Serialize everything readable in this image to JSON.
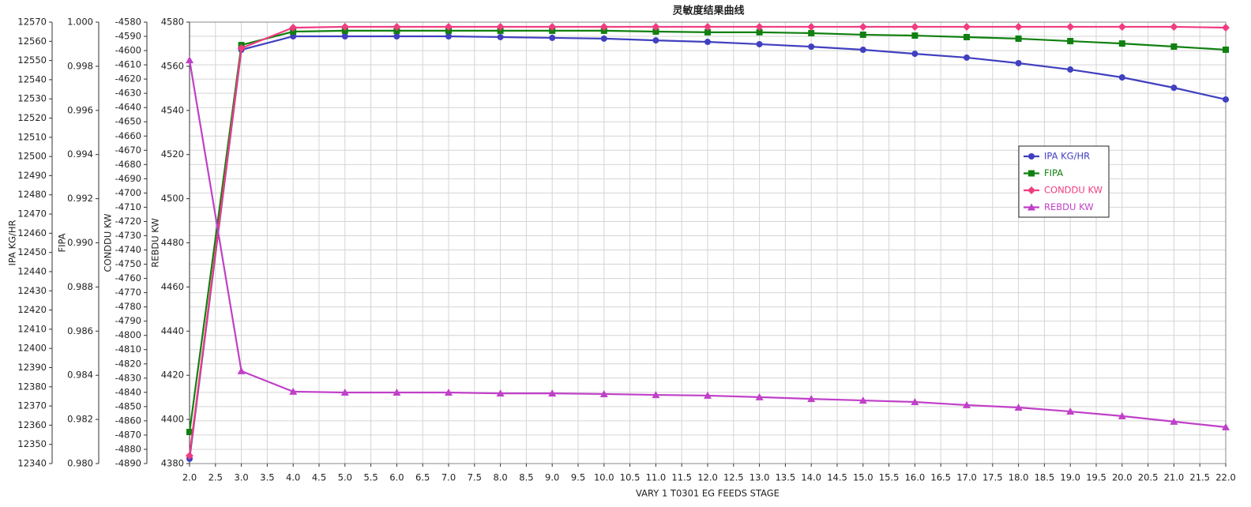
{
  "chart_data": {
    "type": "line",
    "title": "灵敏度结果曲线",
    "x_label": "VARY   1 T0301 EG FEEDS STAGE",
    "x": [
      2,
      3,
      4,
      5,
      6,
      7,
      8,
      9,
      10,
      11,
      12,
      13,
      14,
      15,
      16,
      17,
      18,
      19,
      20,
      21,
      22
    ],
    "xlim": [
      2,
      22
    ],
    "xticks": [
      {
        "value": 2,
        "label": "2.0"
      },
      2.5,
      {
        "value": 3,
        "label": "3.0"
      },
      3.5,
      {
        "value": 4,
        "label": "4.0"
      },
      4.5,
      {
        "value": 5,
        "label": "5.0"
      },
      5.5,
      {
        "value": 6,
        "label": "6.0"
      },
      6.5,
      {
        "value": 7,
        "label": "7.0"
      },
      7.5,
      {
        "value": 8,
        "label": "8.0"
      },
      8.5,
      {
        "value": 9,
        "label": "9.0"
      },
      9.5,
      {
        "value": 10,
        "label": "10.0"
      },
      10.5,
      {
        "value": 11,
        "label": "11.0"
      },
      11.5,
      {
        "value": 12,
        "label": "12.0"
      },
      12.5,
      {
        "value": 13,
        "label": "13.0"
      },
      13.5,
      {
        "value": 14,
        "label": "14.0"
      },
      14.5,
      {
        "value": 15,
        "label": "15.0"
      },
      15.5,
      {
        "value": 16,
        "label": "16.0"
      },
      16.5,
      {
        "value": 17,
        "label": "17.0"
      },
      17.5,
      {
        "value": 18,
        "label": "18.0"
      },
      18.5,
      {
        "value": 19,
        "label": "19.0"
      },
      19.5,
      {
        "value": 20,
        "label": "20.0"
      },
      20.5,
      {
        "value": 21,
        "label": "21.0"
      },
      21.5,
      {
        "value": 22,
        "label": "22.0"
      }
    ],
    "grid": true,
    "legend": "upper-right",
    "y_axes": [
      {
        "label": "IPA KG/HR",
        "ylim": [
          12340,
          12570
        ],
        "yticks": [
          12340,
          12350,
          12360,
          12370,
          12380,
          12390,
          12400,
          12410,
          12420,
          12430,
          12440,
          12450,
          12460,
          12470,
          12480,
          12490,
          12500,
          12510,
          12520,
          12530,
          12540,
          12550,
          12560,
          12570
        ]
      },
      {
        "label": "FIPA",
        "ylim": [
          0.98,
          1.0
        ],
        "yticks": [
          {
            "value": 0.98,
            "label": "0.980"
          },
          0.982,
          0.984,
          0.986,
          0.988,
          {
            "value": 0.99,
            "label": "0.990"
          },
          0.992,
          0.994,
          0.996,
          0.998,
          {
            "value": 1.0,
            "label": "1.000"
          }
        ]
      },
      {
        "label": "CONDDU KW",
        "ylim": [
          -4890,
          -4580
        ],
        "yticks": [
          -4890,
          -4880,
          -4870,
          -4860,
          -4850,
          -4840,
          -4830,
          -4820,
          -4810,
          -4800,
          -4790,
          -4780,
          -4770,
          -4760,
          -4750,
          -4740,
          -4730,
          -4720,
          -4710,
          -4700,
          -4690,
          -4680,
          -4670,
          -4660,
          -4650,
          -4640,
          -4630,
          -4620,
          -4610,
          -4600,
          -4590,
          -4580
        ]
      },
      {
        "label": "REBDU KW",
        "ylim": [
          4380,
          4580
        ],
        "yticks": [
          4380,
          4400,
          4420,
          4440,
          4460,
          4480,
          4500,
          4520,
          4540,
          4560,
          4580
        ]
      }
    ],
    "series": [
      {
        "name": "IPA KG/HR",
        "color": "#4040c0",
        "marker": "circle",
        "axis": 0,
        "values": [
          12342.5,
          12555.6,
          12562.6,
          12562.6,
          12562.6,
          12562.6,
          12562.2,
          12561.8,
          12561.4,
          12560.5,
          12559.7,
          12558.5,
          12557.2,
          12555.6,
          12553.5,
          12551.5,
          12548.6,
          12545.3,
          12541.2,
          12535.8,
          12529.7
        ]
      },
      {
        "name": "FIPA",
        "color": "#108010",
        "marker": "square",
        "axis": 1,
        "values": [
          0.98143,
          0.99896,
          0.99957,
          0.99961,
          0.99961,
          0.99961,
          0.99961,
          0.99961,
          0.99961,
          0.99957,
          0.99954,
          0.99954,
          0.9995,
          0.99943,
          0.99939,
          0.99932,
          0.99925,
          0.99914,
          0.99903,
          0.99889,
          0.99875
        ]
      },
      {
        "name": "CONDDU KW",
        "color": "#f03c80",
        "marker": "diamond",
        "axis": 2,
        "values": [
          -4884.5,
          -4598.3,
          -4583.9,
          -4583.3,
          -4583.3,
          -4583.3,
          -4583.3,
          -4583.3,
          -4583.3,
          -4583.3,
          -4583.3,
          -4583.3,
          -4583.3,
          -4583.3,
          -4583.3,
          -4583.3,
          -4583.3,
          -4583.3,
          -4583.3,
          -4583.3,
          -4583.9
        ]
      },
      {
        "name": "REBDU KW",
        "color": "#c040c8",
        "marker": "triangle",
        "axis": 3,
        "values": [
          4562.8,
          4421.9,
          4412.6,
          4412.2,
          4412.2,
          4412.2,
          4411.8,
          4411.8,
          4411.5,
          4411.1,
          4410.8,
          4410.1,
          4409.3,
          4408.6,
          4407.9,
          4406.5,
          4405.4,
          4403.6,
          4401.5,
          4399,
          4396.5
        ]
      }
    ]
  }
}
